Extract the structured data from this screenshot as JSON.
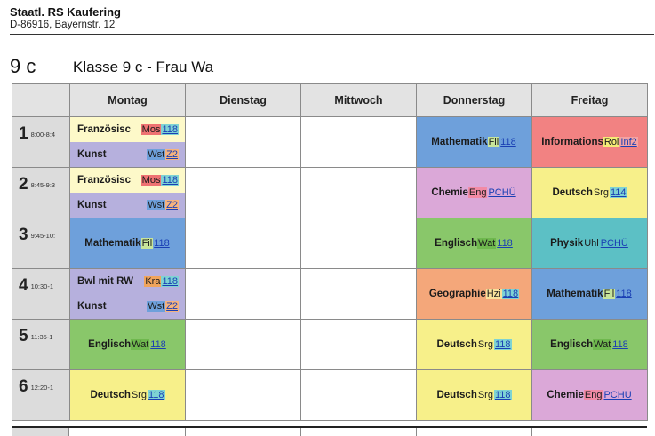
{
  "school": {
    "name": "Staatl. RS Kaufering",
    "address": "D-86916, Bayernstr. 12"
  },
  "class_code": "9 c",
  "title": "Klasse 9 c - Frau Wa",
  "days": [
    "Montag",
    "Dienstag",
    "Mittwoch",
    "Donnerstag",
    "Freitag"
  ],
  "colors": {
    "lilac": "#b6b0dd",
    "cream": "#fdf9c9",
    "blue": "#6ea0db",
    "green": "#89c76a",
    "yellow": "#f7f08a",
    "red": "#f28282",
    "pink": "#dba8d8",
    "orange": "#f4a77a",
    "teal": "#5cc0c5",
    "tag_red": "#ee7272",
    "tag_cyan": "#7ed3d3",
    "tag_lightgreen": "#c8e59a",
    "tag_green": "#86c25e",
    "tag_orange": "#f0a45c",
    "tag_peach": "#f6b37e",
    "tag_yellow": "#f4ec76"
  },
  "periods": [
    {
      "num": "1",
      "time": "8:00-8:4",
      "cells": [
        {
          "type": "split",
          "entries": [
            {
              "subject": "Französisc",
              "teacher": "Mos",
              "room": "118",
              "bg": "#fdf9c9",
              "teacher_bg": "#ee7272",
              "room_bg": "#7ed3d3"
            },
            {
              "subject": "Kunst",
              "teacher": "Wst",
              "room": "Z2",
              "bg": "#b6b0dd",
              "teacher_bg": "#6ea0db",
              "room_bg": "#f6b37e"
            }
          ]
        },
        {
          "type": "empty"
        },
        {
          "type": "empty"
        },
        {
          "type": "single",
          "subject": "Mathematik",
          "teacher": "Fil",
          "room": "118",
          "bg": "#6ea0db",
          "teacher_bg": "#c8e59a",
          "room_bg": "#6ea0db"
        },
        {
          "type": "single",
          "subject": "Informations",
          "teacher": "Rol",
          "room": "Inf2",
          "bg": "#f28282",
          "teacher_bg": "#f4ec76",
          "room_bg": "#f4a3a3"
        }
      ]
    },
    {
      "num": "2",
      "time": "8:45-9:3",
      "cells": [
        {
          "type": "split",
          "entries": [
            {
              "subject": "Französisc",
              "teacher": "Mos",
              "room": "118",
              "bg": "#fdf9c9",
              "teacher_bg": "#ee7272",
              "room_bg": "#7ed3d3"
            },
            {
              "subject": "Kunst",
              "teacher": "Wst",
              "room": "Z2",
              "bg": "#b6b0dd",
              "teacher_bg": "#6ea0db",
              "room_bg": "#f6b37e"
            }
          ]
        },
        {
          "type": "empty"
        },
        {
          "type": "empty"
        },
        {
          "type": "single",
          "subject": "Chemie",
          "teacher": "Eng",
          "room": "PCHÜ",
          "bg": "#dba8d8",
          "teacher_bg": "#f28aa4",
          "room_bg": "#dba8d8"
        },
        {
          "type": "single",
          "subject": "Deutsch",
          "teacher": "Srg",
          "room": "114",
          "bg": "#f7f08a",
          "teacher_bg": "#f7f08a",
          "room_bg": "#7ed3d3"
        }
      ]
    },
    {
      "num": "3",
      "time": "9:45-10:",
      "cells": [
        {
          "type": "single",
          "subject": "Mathematik",
          "teacher": "Fil",
          "room": "118",
          "bg": "#6ea0db",
          "teacher_bg": "#c8e59a",
          "room_bg": "#6ea0db"
        },
        {
          "type": "empty"
        },
        {
          "type": "empty"
        },
        {
          "type": "single",
          "subject": "Englisch",
          "teacher": "Wat",
          "room": "118",
          "bg": "#89c76a",
          "teacher_bg": "#6fb84e",
          "room_bg": "#89c76a"
        },
        {
          "type": "single",
          "subject": "Physik",
          "teacher": "Uhl",
          "room": "PCHÜ",
          "bg": "#5cc0c5",
          "teacher_bg": "#5cc0c5",
          "room_bg": "#5cc0c5"
        }
      ]
    },
    {
      "num": "4",
      "time": "10:30-1",
      "cells": [
        {
          "type": "split",
          "entries": [
            {
              "subject": "Bwl mit RW",
              "teacher": "Kra",
              "room": "118",
              "bg": "#b6b0dd",
              "teacher_bg": "#f0a45c",
              "room_bg": "#7ed3d3"
            },
            {
              "subject": "Kunst",
              "teacher": "Wst",
              "room": "Z2",
              "bg": "#b6b0dd",
              "teacher_bg": "#6ea0db",
              "room_bg": "#f6b37e"
            }
          ]
        },
        {
          "type": "empty"
        },
        {
          "type": "empty"
        },
        {
          "type": "single",
          "subject": "Geographie",
          "teacher": "Hzi",
          "room": "118",
          "bg": "#f4a77a",
          "teacher_bg": "#f9e09a",
          "room_bg": "#7ed3d3"
        },
        {
          "type": "single",
          "subject": "Mathematik",
          "teacher": "Fil",
          "room": "118",
          "bg": "#6ea0db",
          "teacher_bg": "#c8e59a",
          "room_bg": "#6ea0db"
        }
      ]
    },
    {
      "num": "5",
      "time": "11:35-1",
      "cells": [
        {
          "type": "single",
          "subject": "Englisch",
          "teacher": "Wat",
          "room": "118",
          "bg": "#89c76a",
          "teacher_bg": "#6fb84e",
          "room_bg": "#89c76a"
        },
        {
          "type": "empty"
        },
        {
          "type": "empty"
        },
        {
          "type": "single",
          "subject": "Deutsch",
          "teacher": "Srg",
          "room": "118",
          "bg": "#f7f08a",
          "teacher_bg": "#f7f08a",
          "room_bg": "#7ed3d3"
        },
        {
          "type": "single",
          "subject": "Englisch",
          "teacher": "Wat",
          "room": "118",
          "bg": "#89c76a",
          "teacher_bg": "#6fb84e",
          "room_bg": "#89c76a"
        }
      ]
    },
    {
      "num": "6",
      "time": "12:20-1",
      "cells": [
        {
          "type": "single",
          "subject": "Deutsch",
          "teacher": "Srg",
          "room": "118",
          "bg": "#f7f08a",
          "teacher_bg": "#f7f08a",
          "room_bg": "#7ed3d3"
        },
        {
          "type": "empty"
        },
        {
          "type": "empty"
        },
        {
          "type": "single",
          "subject": "Deutsch",
          "teacher": "Srg",
          "room": "118",
          "bg": "#f7f08a",
          "teacher_bg": "#f7f08a",
          "room_bg": "#7ed3d3"
        },
        {
          "type": "single",
          "subject": "Chemie",
          "teacher": "Eng",
          "room": "PCHU",
          "bg": "#dba8d8",
          "teacher_bg": "#f28aa4",
          "room_bg": "#dba8d8"
        }
      ]
    }
  ]
}
